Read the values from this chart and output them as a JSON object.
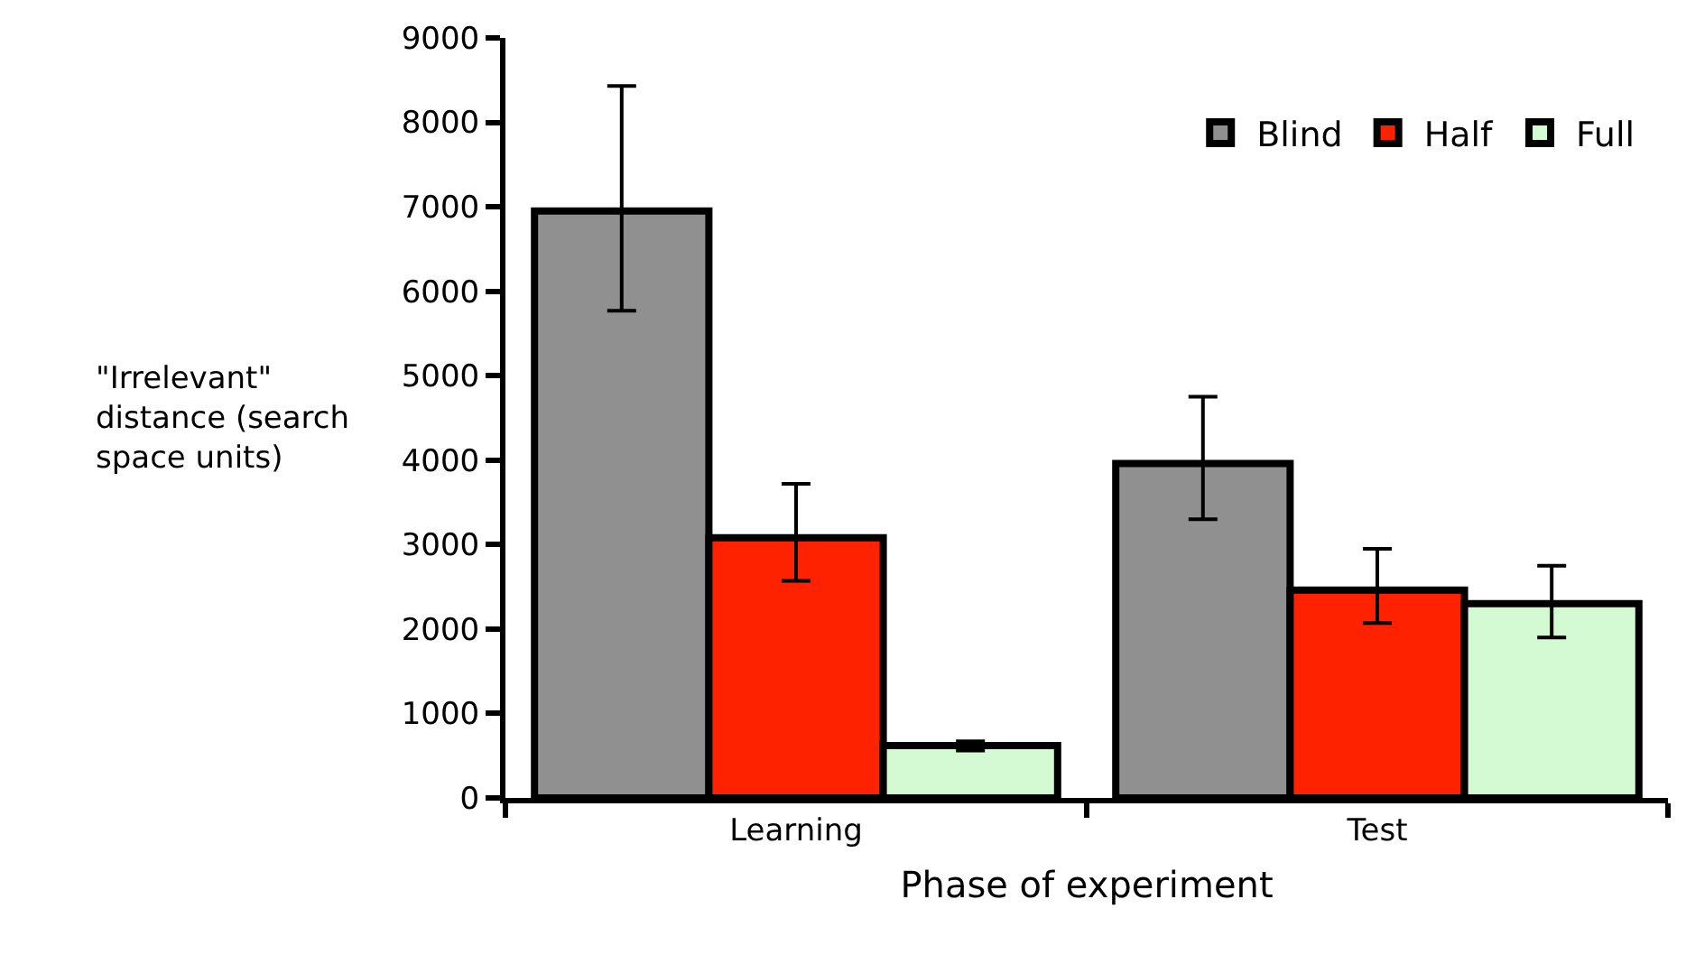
{
  "chart_data": {
    "type": "bar",
    "xlabel": "Phase of experiment",
    "ylabel": "\"Irrelevant\"\ndistance (search\nspace units)",
    "categories": [
      "Learning",
      "Test"
    ],
    "series": [
      {
        "name": "Blind",
        "color": "#909090",
        "values": [
          6950,
          3960
        ],
        "errors": [
          [
            5770,
            8430
          ],
          [
            3300,
            4750
          ]
        ]
      },
      {
        "name": "Half",
        "color": "#ff2200",
        "values": [
          3080,
          2460
        ],
        "errors": [
          [
            2570,
            3720
          ],
          [
            2070,
            2950
          ]
        ]
      },
      {
        "name": "Full",
        "color": "#d4fad4",
        "values": [
          620,
          2300
        ],
        "errors": [
          [
            560,
            670
          ],
          [
            1900,
            2750
          ]
        ]
      }
    ],
    "ylim": [
      0,
      9000
    ],
    "yticks": [
      0,
      1000,
      2000,
      3000,
      4000,
      5000,
      6000,
      7000,
      8000,
      9000
    ],
    "legend": "top right"
  }
}
